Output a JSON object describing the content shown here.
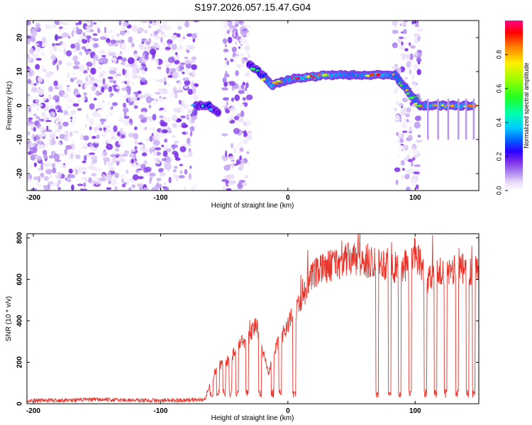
{
  "figure_title": "S197.2026.057.15.47.G04",
  "chart_data": [
    {
      "type": "heatmap",
      "title": "S197.2026.057.15.47.G04",
      "xlabel": "Height of straight line (km)",
      "ylabel": "Frequency (Hz)",
      "xlim": [
        -205,
        150
      ],
      "ylim": [
        -25,
        25
      ],
      "xticks": [
        -200,
        -100,
        0,
        100
      ],
      "xtick_labels": [
        "-200",
        "-100",
        "0",
        "100"
      ],
      "yticks": [
        -20,
        -10,
        0,
        10,
        20
      ],
      "ytick_labels": [
        "-20",
        "-10",
        "0",
        "10",
        "20"
      ],
      "colorbar": {
        "label": "Normalized spectral amplitude",
        "range": [
          0,
          1
        ],
        "ticks": [
          0.0,
          0.2,
          0.4,
          0.6,
          0.8
        ],
        "tick_labels": [
          "0.0",
          "0.2",
          "0.4",
          "0.6",
          "0.8"
        ],
        "colormap": [
          "#ffffff",
          "#e6d8f7",
          "#b48ff0",
          "#7a2ee8",
          "#5b00e0",
          "#0000ff",
          "#0099ff",
          "#00ffee",
          "#00ff66",
          "#55ff00",
          "#ffff00",
          "#ff8800",
          "#ff0000",
          "#ff0080"
        ]
      },
      "noise_regions": [
        {
          "x_start": -205,
          "x_end": -72,
          "kind": "broadband"
        },
        {
          "x_start": -50,
          "x_end": -30,
          "kind": "broadband"
        },
        {
          "x_start": 84,
          "x_end": 104,
          "kind": "broadband"
        }
      ],
      "ridge": [
        {
          "x": -72,
          "freq": 0,
          "amp": 0.5
        },
        {
          "x": -62,
          "freq": 0,
          "amp": 0.7
        },
        {
          "x": -55,
          "freq": -2,
          "amp": 0.5
        },
        {
          "x": -30,
          "freq": 12,
          "amp": 0.6
        },
        {
          "x": -20,
          "freq": 9,
          "amp": 0.7
        },
        {
          "x": -12,
          "freq": 6,
          "amp": 0.9
        },
        {
          "x": -5,
          "freq": 7,
          "amp": 0.8
        },
        {
          "x": 5,
          "freq": 8,
          "amp": 0.9
        },
        {
          "x": 20,
          "freq": 8.5,
          "amp": 0.95
        },
        {
          "x": 35,
          "freq": 9,
          "amp": 0.9
        },
        {
          "x": 50,
          "freq": 9,
          "amp": 0.8
        },
        {
          "x": 65,
          "freq": 9,
          "amp": 0.85
        },
        {
          "x": 75,
          "freq": 9,
          "amp": 0.9
        },
        {
          "x": 84,
          "freq": 9,
          "amp": 0.8
        },
        {
          "x": 104,
          "freq": 0,
          "amp": 0.8
        },
        {
          "x": 115,
          "freq": 0,
          "amp": 0.9
        },
        {
          "x": 130,
          "freq": 0,
          "amp": 0.9
        },
        {
          "x": 145,
          "freq": 0,
          "amp": 0.85
        }
      ]
    },
    {
      "type": "line",
      "xlabel": "Height of straight line (km)",
      "ylabel": "SNR (10 * v/v)",
      "xlim": [
        -205,
        150
      ],
      "ylim": [
        0,
        820
      ],
      "xticks": [
        -200,
        -100,
        0,
        100
      ],
      "xtick_labels": [
        "-200",
        "-100",
        "0",
        "100"
      ],
      "yticks": [
        0,
        200,
        400,
        600,
        800
      ],
      "ytick_labels": [
        "0",
        "200",
        "400",
        "600",
        "800"
      ],
      "line_color": "#e8342a",
      "series": [
        {
          "name": "SNR",
          "x": [
            -205,
            -150,
            -100,
            -65,
            -60,
            -55,
            -50,
            -45,
            -40,
            -35,
            -30,
            -25,
            -20,
            -15,
            -10,
            -5,
            0,
            10,
            20,
            30,
            40,
            50,
            60,
            70,
            80,
            90,
            95,
            100,
            110,
            120,
            130,
            140,
            150
          ],
          "y": [
            15,
            20,
            15,
            20,
            120,
            180,
            200,
            210,
            280,
            300,
            330,
            380,
            260,
            150,
            260,
            330,
            380,
            500,
            620,
            660,
            680,
            700,
            680,
            690,
            670,
            640,
            700,
            720,
            600,
            640,
            640,
            650,
            650
          ]
        }
      ],
      "dropouts_x": [
        -60,
        -55,
        -50,
        -45,
        -40,
        -32,
        -22,
        -12,
        -6,
        5,
        70,
        80,
        88,
        96,
        108,
        116,
        124,
        133,
        141,
        146
      ]
    }
  ]
}
